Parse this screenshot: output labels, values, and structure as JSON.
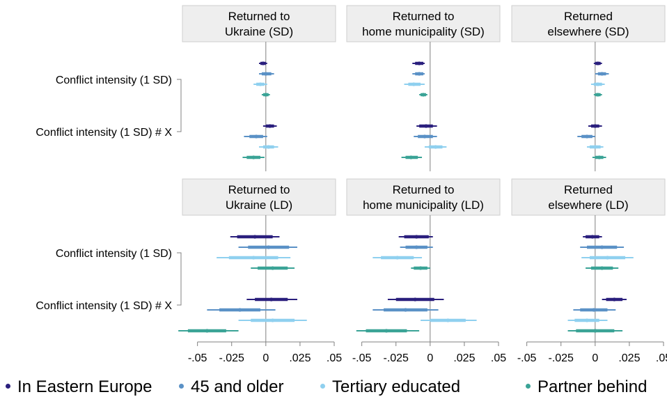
{
  "chart_data": {
    "type": "scatter",
    "variant": "coefficient-plot-with-confidence-intervals",
    "series": [
      {
        "name": "In Eastern Europe",
        "color": "#2a1f7d"
      },
      {
        "name": "45 and older",
        "color": "#5a91c6"
      },
      {
        "name": "Tertiary educated",
        "color": "#8fd0ef"
      },
      {
        "name": "Partner behind",
        "color": "#3aa396"
      }
    ],
    "row_labels": [
      "Conflict intensity (1 SD)",
      "Conflict intensity (1 SD) # X"
    ],
    "xlim": [
      -0.06,
      0.05
    ],
    "x_ticks": [
      {
        "value": -0.05,
        "label": "-.05"
      },
      {
        "value": -0.025,
        "label": "-.025"
      },
      {
        "value": 0,
        "label": "0"
      },
      {
        "value": 0.025,
        "label": ".025"
      },
      {
        "value": 0.05,
        "label": ".05"
      }
    ],
    "panels": [
      {
        "title_lines": [
          "Returned to",
          "Ukraine (SD)"
        ],
        "points": [
          {
            "row": 0,
            "series": 0,
            "est": -0.002,
            "lo90": -0.004,
            "hi90": 0.0,
            "lo95": -0.005,
            "hi95": 0.001
          },
          {
            "row": 0,
            "series": 1,
            "est": 0.0,
            "lo90": -0.003,
            "hi90": 0.004,
            "lo95": -0.005,
            "hi95": 0.006
          },
          {
            "row": 0,
            "series": 2,
            "est": -0.004,
            "lo90": -0.007,
            "hi90": -0.001,
            "lo95": -0.009,
            "hi95": 0.001
          },
          {
            "row": 0,
            "series": 3,
            "est": 0.0,
            "lo90": -0.002,
            "hi90": 0.002,
            "lo95": -0.003,
            "hi95": 0.003
          },
          {
            "row": 1,
            "series": 0,
            "est": 0.003,
            "lo90": 0.0,
            "hi90": 0.006,
            "lo95": -0.002,
            "hi95": 0.008
          },
          {
            "row": 1,
            "series": 1,
            "est": -0.007,
            "lo90": -0.012,
            "hi90": -0.002,
            "lo95": -0.016,
            "hi95": 0.001
          },
          {
            "row": 1,
            "series": 2,
            "est": 0.002,
            "lo90": -0.002,
            "hi90": 0.006,
            "lo95": -0.005,
            "hi95": 0.009
          },
          {
            "row": 1,
            "series": 3,
            "est": -0.009,
            "lo90": -0.014,
            "hi90": -0.004,
            "lo95": -0.017,
            "hi95": -0.001
          }
        ]
      },
      {
        "title_lines": [
          "Returned to",
          "home municipality (SD)"
        ],
        "points": [
          {
            "row": 0,
            "series": 0,
            "est": -0.008,
            "lo90": -0.011,
            "hi90": -0.005,
            "lo95": -0.013,
            "hi95": -0.004
          },
          {
            "row": 0,
            "series": 1,
            "est": -0.008,
            "lo90": -0.011,
            "hi90": -0.005,
            "lo95": -0.013,
            "hi95": -0.004
          },
          {
            "row": 0,
            "series": 2,
            "est": -0.012,
            "lo90": -0.016,
            "hi90": -0.007,
            "lo95": -0.019,
            "hi95": -0.004
          },
          {
            "row": 0,
            "series": 3,
            "est": -0.005,
            "lo90": -0.007,
            "hi90": -0.003,
            "lo95": -0.008,
            "hi95": -0.002
          },
          {
            "row": 1,
            "series": 0,
            "est": -0.003,
            "lo90": -0.008,
            "hi90": 0.002,
            "lo95": -0.01,
            "hi95": 0.005
          },
          {
            "row": 1,
            "series": 1,
            "est": -0.004,
            "lo90": -0.009,
            "hi90": 0.002,
            "lo95": -0.012,
            "hi95": 0.005
          },
          {
            "row": 1,
            "series": 2,
            "est": 0.004,
            "lo90": -0.001,
            "hi90": 0.009,
            "lo95": -0.004,
            "hi95": 0.012
          },
          {
            "row": 1,
            "series": 3,
            "est": -0.014,
            "lo90": -0.018,
            "hi90": -0.009,
            "lo95": -0.021,
            "hi95": -0.006
          }
        ]
      },
      {
        "title_lines": [
          "Returned",
          "elsewhere (SD)"
        ],
        "points": [
          {
            "row": 0,
            "series": 0,
            "est": 0.002,
            "lo90": 0.0,
            "hi90": 0.004,
            "lo95": -0.001,
            "hi95": 0.005
          },
          {
            "row": 0,
            "series": 1,
            "est": 0.005,
            "lo90": 0.002,
            "hi90": 0.008,
            "lo95": 0.0,
            "hi95": 0.01
          },
          {
            "row": 0,
            "series": 2,
            "est": 0.002,
            "lo90": -0.001,
            "hi90": 0.005,
            "lo95": -0.003,
            "hi95": 0.007
          },
          {
            "row": 0,
            "series": 3,
            "est": 0.002,
            "lo90": 0.0,
            "hi90": 0.004,
            "lo95": -0.001,
            "hi95": 0.005
          },
          {
            "row": 1,
            "series": 0,
            "est": 0.0,
            "lo90": -0.003,
            "hi90": 0.003,
            "lo95": -0.005,
            "hi95": 0.005
          },
          {
            "row": 1,
            "series": 1,
            "est": -0.006,
            "lo90": -0.01,
            "hi90": -0.002,
            "lo95": -0.013,
            "hi95": 0.0
          },
          {
            "row": 1,
            "series": 2,
            "est": 0.0,
            "lo90": -0.004,
            "hi90": 0.004,
            "lo95": -0.006,
            "hi95": 0.006
          },
          {
            "row": 1,
            "series": 3,
            "est": 0.003,
            "lo90": 0.0,
            "hi90": 0.006,
            "lo95": -0.002,
            "hi95": 0.008
          }
        ]
      },
      {
        "title_lines": [
          "Returned to",
          "Ukraine (LD)"
        ],
        "points": [
          {
            "row": 0,
            "series": 0,
            "est": -0.008,
            "lo90": -0.021,
            "hi90": 0.005,
            "lo95": -0.026,
            "hi95": 0.01
          },
          {
            "row": 0,
            "series": 1,
            "est": 0.002,
            "lo90": -0.013,
            "hi90": 0.017,
            "lo95": -0.02,
            "hi95": 0.023
          },
          {
            "row": 0,
            "series": 2,
            "est": -0.009,
            "lo90": -0.027,
            "hi90": 0.009,
            "lo95": -0.036,
            "hi95": 0.018
          },
          {
            "row": 0,
            "series": 3,
            "est": 0.005,
            "lo90": -0.006,
            "hi90": 0.016,
            "lo95": -0.011,
            "hi95": 0.021
          },
          {
            "row": 1,
            "series": 0,
            "est": 0.004,
            "lo90": -0.008,
            "hi90": 0.016,
            "lo95": -0.014,
            "hi95": 0.023
          },
          {
            "row": 1,
            "series": 1,
            "est": -0.019,
            "lo90": -0.034,
            "hi90": -0.004,
            "lo95": -0.043,
            "hi95": 0.007
          },
          {
            "row": 1,
            "series": 2,
            "est": 0.005,
            "lo90": -0.011,
            "hi90": 0.021,
            "lo95": -0.02,
            "hi95": 0.03
          },
          {
            "row": 1,
            "series": 3,
            "est": -0.043,
            "lo90": -0.057,
            "hi90": -0.029,
            "lo95": -0.064,
            "hi95": -0.02
          }
        ]
      },
      {
        "title_lines": [
          "Returned to",
          "home municipality (LD)"
        ],
        "points": [
          {
            "row": 0,
            "series": 0,
            "est": -0.01,
            "lo90": -0.019,
            "hi90": -0.001,
            "lo95": -0.023,
            "hi95": 0.002
          },
          {
            "row": 0,
            "series": 1,
            "est": -0.01,
            "lo90": -0.018,
            "hi90": -0.002,
            "lo95": -0.022,
            "hi95": 0.002
          },
          {
            "row": 0,
            "series": 2,
            "est": -0.024,
            "lo90": -0.036,
            "hi90": -0.012,
            "lo95": -0.042,
            "hi95": -0.006
          },
          {
            "row": 0,
            "series": 3,
            "est": -0.007,
            "lo90": -0.012,
            "hi90": -0.002,
            "lo95": -0.014,
            "hi95": 0.0
          },
          {
            "row": 1,
            "series": 0,
            "est": -0.011,
            "lo90": -0.025,
            "hi90": 0.003,
            "lo95": -0.031,
            "hi95": 0.01
          },
          {
            "row": 1,
            "series": 1,
            "est": -0.018,
            "lo90": -0.034,
            "hi90": -0.002,
            "lo95": -0.042,
            "hi95": 0.006
          },
          {
            "row": 1,
            "series": 2,
            "est": 0.013,
            "lo90": 0.0,
            "hi90": 0.026,
            "lo95": -0.007,
            "hi95": 0.034
          },
          {
            "row": 1,
            "series": 3,
            "est": -0.032,
            "lo90": -0.047,
            "hi90": -0.017,
            "lo95": -0.054,
            "hi95": -0.008
          }
        ]
      },
      {
        "title_lines": [
          "Returned",
          "elsewhere (LD)"
        ],
        "points": [
          {
            "row": 0,
            "series": 0,
            "est": -0.002,
            "lo90": -0.007,
            "hi90": 0.003,
            "lo95": -0.009,
            "hi95": 0.005
          },
          {
            "row": 0,
            "series": 1,
            "est": 0.005,
            "lo90": -0.006,
            "hi90": 0.016,
            "lo95": -0.011,
            "hi95": 0.021
          },
          {
            "row": 0,
            "series": 2,
            "est": 0.009,
            "lo90": -0.004,
            "hi90": 0.022,
            "lo95": -0.01,
            "hi95": 0.028
          },
          {
            "row": 0,
            "series": 3,
            "est": 0.005,
            "lo90": -0.003,
            "hi90": 0.013,
            "lo95": -0.007,
            "hi95": 0.017
          },
          {
            "row": 1,
            "series": 0,
            "est": 0.014,
            "lo90": 0.008,
            "hi90": 0.02,
            "lo95": 0.005,
            "hi95": 0.023
          },
          {
            "row": 1,
            "series": 1,
            "est": -0.001,
            "lo90": -0.011,
            "hi90": 0.009,
            "lo95": -0.016,
            "hi95": 0.015
          },
          {
            "row": 1,
            "series": 2,
            "est": -0.006,
            "lo90": -0.015,
            "hi90": 0.003,
            "lo95": -0.02,
            "hi95": 0.009
          },
          {
            "row": 1,
            "series": 3,
            "est": 0.0,
            "lo90": -0.014,
            "hi90": 0.014,
            "lo95": -0.02,
            "hi95": 0.02
          }
        ]
      }
    ],
    "legend_position": "bottom",
    "grid": false,
    "colors": {
      "title_box": "#eeeeee",
      "title_border": "#cfcfcf",
      "axis": "#808080"
    }
  }
}
